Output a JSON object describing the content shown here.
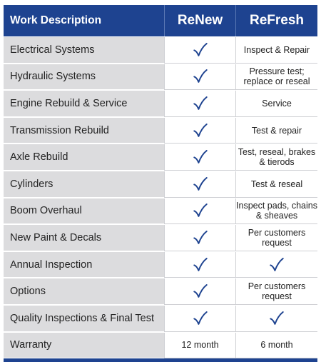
{
  "header": {
    "col1": "Work Description",
    "col2": "ReNew",
    "col3": "ReFresh"
  },
  "rows": [
    {
      "description": "Electrical Systems",
      "renew": "✓",
      "refresh": "Inspect & Repair"
    },
    {
      "description": "Hydraulic Systems",
      "renew": "✓",
      "refresh": "Pressure test; replace or reseal"
    },
    {
      "description": "Engine Rebuild & Service",
      "renew": "✓",
      "refresh": "Service"
    },
    {
      "description": "Transmission Rebuild",
      "renew": "✓",
      "refresh": "Test & repair"
    },
    {
      "description": "Axle Rebuild",
      "renew": "✓",
      "refresh": "Test, reseal, brakes & tierods"
    },
    {
      "description": "Cylinders",
      "renew": "✓",
      "refresh": "Test & reseal"
    },
    {
      "description": "Boom Overhaul",
      "renew": "✓",
      "refresh": "Inspect pads, chains & sheaves"
    },
    {
      "description": "New Paint & Decals",
      "renew": "✓",
      "refresh": "Per customers request"
    },
    {
      "description": "Annual Inspection",
      "renew": "✓",
      "refresh": "✓"
    },
    {
      "description": "Options",
      "renew": "✓",
      "refresh": "Per customers request"
    },
    {
      "description": "Quality Inspections & Final Test",
      "renew": "✓",
      "refresh": "✓"
    },
    {
      "description": "Warranty",
      "renew": "12 month",
      "refresh": "6 month"
    }
  ],
  "colors": {
    "header_bg": "#1e4390",
    "check": "#1e4390",
    "label_bg": "#dcdcde"
  },
  "icons": {
    "check": "checkmark-icon"
  }
}
